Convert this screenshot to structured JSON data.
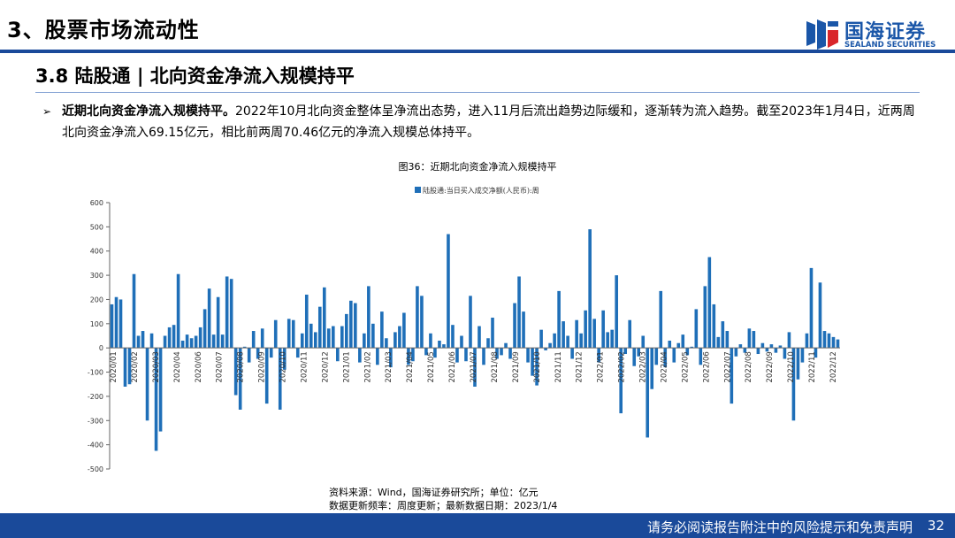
{
  "header": {
    "section_title": "3、股票市场流动性",
    "logo_cn": "国海证券",
    "logo_en": "SEALAND SECURITIES"
  },
  "slide": {
    "subtitle": "3.8 陆股通 | 北向资金净流入规模持平",
    "bullet_arrow": "➢",
    "bullet_bold": "近期北向资金净流入规模持平。",
    "bullet_text": "2022年10月北向资金整体呈净流出态势，进入11月后流出趋势边际缓和，逐渐转为流入趋势。截至2023年1月4日，近两周北向资金净流入69.15亿元，相比前两周70.46亿元的净流入规模总体持平。",
    "figure_title": "图36：近期北向资金净流入规模持平",
    "source_line1": "资料来源：Wind，国海证券研究所；单位：亿元",
    "source_line2": "数据更新频率：周度更新；最新数据日期：2023/1/4"
  },
  "footer": {
    "disclaimer": "请务必阅读报告附注中的风险提示和免责声明",
    "page": "32"
  },
  "colors": {
    "brand": "#1a4a9a",
    "bar": "#1f6fb8"
  },
  "chart_data": {
    "type": "bar",
    "title": "",
    "legend": "陆股通:当日买入成交净额(人民币):周",
    "xlabel": "",
    "ylabel": "",
    "ylim": [
      -500,
      600
    ],
    "yticks": [
      -500,
      -400,
      -300,
      -200,
      -100,
      0,
      100,
      200,
      300,
      400,
      500,
      600
    ],
    "xtick_labels": [
      "2020/01",
      "2020/02",
      "2020/03",
      "2020/04",
      "2020/06",
      "2020/07",
      "2020/08",
      "2020/09",
      "2020/10",
      "2020/11",
      "2020/12",
      "2021/01",
      "2021/02",
      "2021/03",
      "2021/04",
      "2021/05",
      "2021/06",
      "2021/07",
      "2021/08",
      "2021/09",
      "2021/10",
      "2021/11",
      "2021/12",
      "2022/01",
      "2022/02",
      "2022/03",
      "2022/04",
      "2022/05",
      "2022/06",
      "2022/07",
      "2022/08",
      "2022/09",
      "2022/10",
      "2022/11",
      "2022/12"
    ],
    "values": [
      180,
      210,
      200,
      -160,
      -150,
      305,
      50,
      70,
      -300,
      60,
      -425,
      -345,
      50,
      85,
      95,
      305,
      30,
      55,
      40,
      50,
      85,
      160,
      245,
      55,
      210,
      55,
      295,
      285,
      -195,
      -255,
      5,
      -60,
      70,
      -45,
      80,
      -230,
      -40,
      115,
      -255,
      -90,
      120,
      115,
      -40,
      60,
      220,
      100,
      65,
      170,
      250,
      80,
      90,
      -55,
      90,
      140,
      195,
      185,
      -60,
      60,
      255,
      100,
      -70,
      150,
      40,
      -80,
      65,
      90,
      145,
      -70,
      -55,
      255,
      215,
      -30,
      60,
      -40,
      30,
      15,
      470,
      95,
      -60,
      50,
      -55,
      215,
      -160,
      90,
      -70,
      40,
      125,
      -45,
      -30,
      20,
      -45,
      185,
      295,
      150,
      -60,
      -115,
      -155,
      75,
      -10,
      20,
      60,
      235,
      110,
      50,
      -45,
      115,
      60,
      155,
      490,
      120,
      -60,
      155,
      65,
      75,
      300,
      -270,
      -25,
      115,
      -75,
      -35,
      50,
      -370,
      -170,
      -70,
      235,
      -80,
      30,
      -60,
      20,
      55,
      -30,
      5,
      160,
      -70,
      255,
      375,
      180,
      45,
      110,
      70,
      -230,
      -35,
      15,
      -20,
      80,
      70,
      -25,
      20,
      -15,
      15,
      -20,
      10,
      -45,
      65,
      -300,
      -130,
      -60,
      60,
      330,
      -40,
      270,
      70,
      60,
      45,
      35
    ]
  }
}
